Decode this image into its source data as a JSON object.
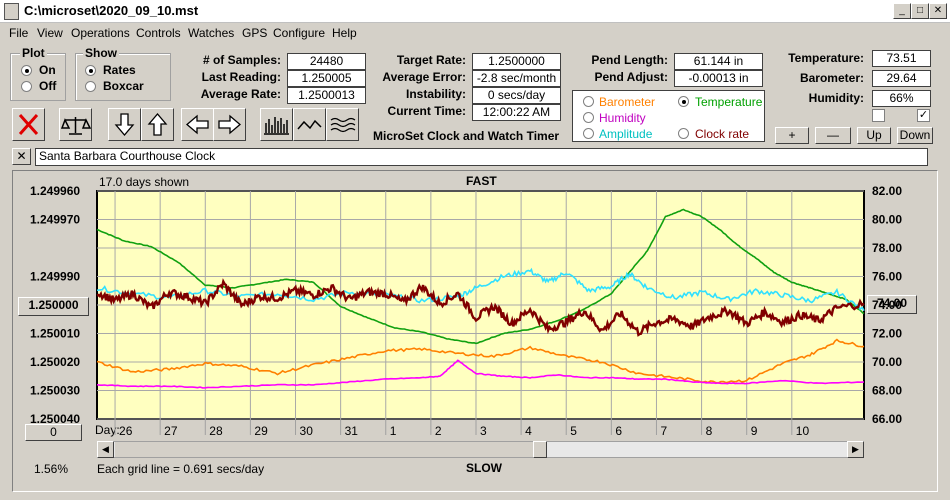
{
  "window": {
    "title": "C:\\microset\\2020_09_10.mst",
    "min": "_",
    "max": "□",
    "close": "✕"
  },
  "menu": [
    "File",
    "View",
    "Operations",
    "Controls",
    "Watches",
    "GPS",
    "Configure",
    "Help"
  ],
  "plot_group": {
    "title": "Plot",
    "on": "On",
    "off": "Off",
    "selected": "On"
  },
  "show_group": {
    "title": "Show",
    "rates": "Rates",
    "boxcar": "Boxcar",
    "selected": "Rates"
  },
  "stats": {
    "samples_label": "# of Samples:",
    "samples": "24480",
    "last_label": "Last Reading:",
    "last": "1.250005",
    "avg_label": "Average Rate:",
    "avg": "1.2500013",
    "target_label": "Target Rate:",
    "target": "1.2500000",
    "error_label": "Average Error:",
    "error": "-2.8 sec/month",
    "instab_label": "Instability:",
    "instab": "0 secs/day",
    "time_label": "Current Time:",
    "time": "12:00:22 AM",
    "pend_len_label": "Pend Length:",
    "pend_len": "61.144 in",
    "pend_adj_label": "Pend Adjust:",
    "pend_adj": "-0.00013 in",
    "temp_label": "Temperature:",
    "temp": "73.51",
    "baro_label": "Barometer:",
    "baro": "29.64",
    "hum_label": "Humidity:",
    "hum": "66%"
  },
  "app_title": "MicroSet Clock and Watch Timer",
  "sensor_options": [
    {
      "label": "Barometer",
      "color": "#ff8000",
      "selected": false
    },
    {
      "label": "Temperature",
      "color": "#00a000",
      "selected": true
    },
    {
      "label": "Humidity",
      "color": "#c000c0",
      "selected": false
    },
    {
      "label": "Clock rate",
      "color": "#800000",
      "selected": false
    },
    {
      "label": "Amplitude",
      "color": "#00c0c0",
      "selected": false
    }
  ],
  "small_buttons": {
    "plus": "+",
    "minus": "—",
    "up": "Up",
    "down": "Down"
  },
  "checkboxes": {
    "left": false,
    "right": true,
    "check_mark": "✓"
  },
  "clock_bar": {
    "close": "✕",
    "name": "Santa Barbara Courthouse Clock"
  },
  "toolbar_icons": [
    "clear-icon",
    "balance-scale-icon",
    "arrow-down-icon",
    "arrow-up-icon",
    "arrow-left-icon",
    "arrow-right-icon",
    "bar-chart-icon",
    "wave-icon",
    "multi-wave-icon"
  ],
  "colors": {
    "plot_bg": "#ffffc0",
    "grid": "#b0b0b0",
    "rate": "#800000",
    "amplitude": "#30e0ff",
    "temperature": "#10a010",
    "barometer": "#ff8000",
    "humidity": "#ff00ff"
  },
  "chart_labels": {
    "days_shown": "17.0 days shown",
    "fast": "FAST",
    "slow": "SLOW",
    "day_label": "Day:",
    "grid_note": "Each grid line = 0.691 secs/day",
    "left_button": "1.250000",
    "right_button": "74.00",
    "zero_button": "0",
    "percent": "1.56%"
  },
  "chart_data": {
    "type": "line",
    "x_ticks": [
      "26",
      "27",
      "28",
      "29",
      "30",
      "31",
      "1",
      "2",
      "3",
      "4",
      "5",
      "6",
      "7",
      "8",
      "9",
      "10"
    ],
    "x_range": [
      25.6,
      42.6
    ],
    "x_tick_values": [
      26,
      27,
      28,
      29,
      30,
      31,
      32,
      33,
      34,
      35,
      36,
      37,
      38,
      39,
      40,
      41
    ],
    "y_left_ticks": [
      "1.249960",
      "1.249970",
      "1.249990",
      "1.250010",
      "1.250020",
      "1.250030",
      "1.250040"
    ],
    "y_left_range": [
      1.24996,
      1.25004
    ],
    "y_right_ticks": [
      "82.00",
      "80.00",
      "78.00",
      "76.00",
      "74.00",
      "72.00",
      "70.00",
      "68.00",
      "66.00"
    ],
    "y_right_range": [
      66,
      82
    ],
    "series": [
      {
        "name": "Temperature",
        "color": "#10a010",
        "x": [
          25.6,
          26.2,
          26.8,
          27.4,
          28.0,
          28.6,
          29.2,
          29.8,
          30.4,
          31.0,
          31.6,
          32.2,
          32.8,
          33.4,
          34.0,
          34.6,
          35.2,
          35.8,
          36.4,
          37.0,
          37.4,
          37.8,
          38.2,
          38.6,
          39.0,
          39.4,
          39.8,
          40.2,
          40.6,
          41.0,
          41.4,
          41.8,
          42.2,
          42.6
        ],
        "y": [
          79.3,
          78.5,
          78.1,
          77.0,
          75.4,
          75.2,
          75.5,
          75.8,
          75.6,
          73.9,
          73.1,
          72.4,
          72.1,
          71.6,
          71.3,
          72.0,
          72.3,
          72.9,
          73.7,
          74.8,
          76.3,
          77.8,
          80.2,
          80.7,
          80.2,
          79.3,
          78.2,
          77.3,
          76.3,
          75.6,
          75.2,
          74.8,
          74.4,
          73.4
        ]
      },
      {
        "name": "Amplitude",
        "color": "#30e0ff",
        "x": [
          25.6,
          26.4,
          27.2,
          28.0,
          28.8,
          29.6,
          30.4,
          31.2,
          32.0,
          32.8,
          33.6,
          34.0,
          34.6,
          35.2,
          35.6,
          36.0,
          36.5,
          37.0,
          37.4,
          37.8,
          38.4,
          39.0,
          39.6,
          40.2,
          40.8,
          41.4,
          42.0,
          42.6
        ],
        "y": [
          75.2,
          74.8,
          74.5,
          75.0,
          74.6,
          74.8,
          74.4,
          74.9,
          74.7,
          74.3,
          74.6,
          75.2,
          76.0,
          76.4,
          75.6,
          76.3,
          75.0,
          75.3,
          76.2,
          75.2,
          74.5,
          74.9,
          74.4,
          75.0,
          74.7,
          74.3,
          74.9,
          73.6
        ]
      },
      {
        "name": "Clock rate",
        "color": "#800000",
        "x": [
          25.6,
          26.0,
          26.4,
          26.8,
          27.2,
          27.6,
          28.0,
          28.4,
          28.8,
          29.2,
          29.6,
          30.0,
          30.4,
          30.8,
          31.2,
          31.6,
          32.0,
          32.4,
          32.8,
          33.2,
          33.6,
          34.0,
          34.4,
          34.8,
          35.2,
          35.6,
          36.0,
          36.4,
          36.8,
          37.2,
          37.6,
          38.0,
          38.4,
          38.8,
          39.2,
          39.6,
          40.0,
          40.4,
          40.8,
          41.2,
          41.6,
          42.0,
          42.6
        ],
        "y": [
          74.9,
          74.3,
          74.8,
          73.8,
          74.9,
          74.6,
          74.1,
          75.5,
          74.0,
          74.6,
          74.5,
          75.0,
          74.7,
          75.2,
          74.4,
          74.9,
          74.8,
          74.2,
          75.3,
          74.1,
          74.8,
          73.1,
          73.9,
          72.7,
          73.7,
          72.3,
          72.8,
          73.6,
          72.2,
          73.4,
          72.1,
          72.8,
          73.0,
          72.5,
          73.2,
          73.6,
          72.7,
          73.5,
          72.8,
          73.3,
          72.9,
          73.8,
          74.1
        ]
      },
      {
        "name": "Barometer",
        "color": "#ff8000",
        "x": [
          25.6,
          26.4,
          27.2,
          28.0,
          28.8,
          29.6,
          30.4,
          31.2,
          32.0,
          32.8,
          33.6,
          34.4,
          35.2,
          36.0,
          36.8,
          37.6,
          38.4,
          39.2,
          40.0,
          40.8,
          41.4,
          42.0,
          42.6
        ],
        "y": [
          70.0,
          69.3,
          69.5,
          69.9,
          69.7,
          69.2,
          69.8,
          70.3,
          70.8,
          70.9,
          70.6,
          70.4,
          71.0,
          70.4,
          70.0,
          69.2,
          68.9,
          68.6,
          68.7,
          69.9,
          70.5,
          71.5,
          71.1
        ]
      },
      {
        "name": "Humidity",
        "color": "#ff00ff",
        "x": [
          25.6,
          26.4,
          27.2,
          28.0,
          28.8,
          29.6,
          30.4,
          31.2,
          32.0,
          32.8,
          33.2,
          33.6,
          34.0,
          34.6,
          35.2,
          35.8,
          36.4,
          37.0,
          37.6,
          38.2,
          38.8,
          39.4,
          40.0,
          40.8,
          41.6,
          42.6
        ],
        "y": [
          68.4,
          68.3,
          68.3,
          68.2,
          68.3,
          68.4,
          68.4,
          68.6,
          68.8,
          68.9,
          69.0,
          70.1,
          69.2,
          69.0,
          68.9,
          69.1,
          68.9,
          68.9,
          68.8,
          68.8,
          68.6,
          68.5,
          68.5,
          68.7,
          68.5,
          68.6
        ]
      }
    ]
  }
}
